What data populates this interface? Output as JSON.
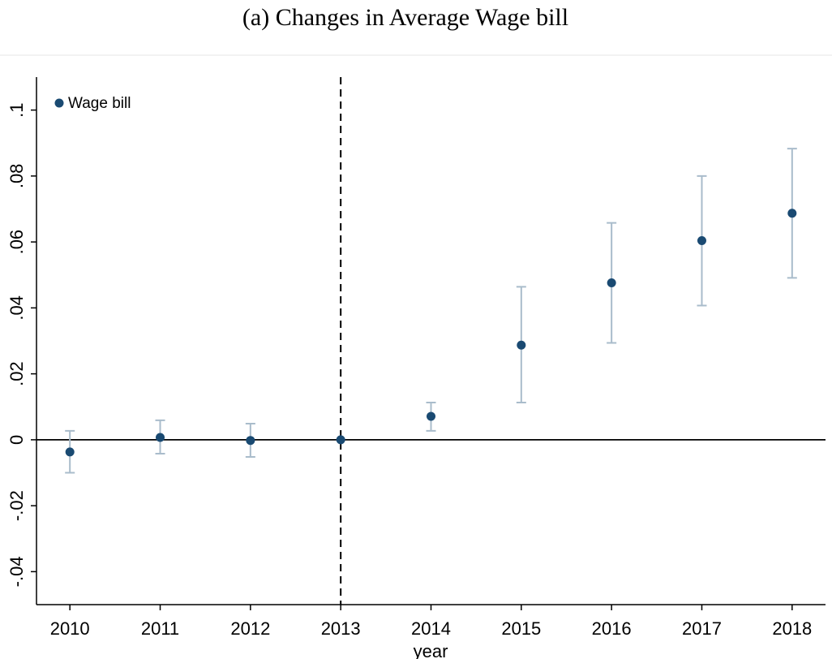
{
  "chart_data": {
    "type": "scatter",
    "title": "(a) Changes in Average Wage bill",
    "x_label": "year",
    "x": [
      2010,
      2011,
      2012,
      2013,
      2014,
      2015,
      2016,
      2017,
      2018
    ],
    "series": [
      {
        "name": "Wage bill",
        "color": "#1a4a72",
        "values": [
          -0.0037,
          0.0007,
          -0.0002,
          0,
          0.0071,
          0.0287,
          0.0476,
          0.0604,
          0.0687
        ],
        "lower": [
          -0.01,
          -0.0042,
          -0.0052,
          null,
          0.0027,
          0.0113,
          0.0294,
          0.0407,
          0.0491
        ],
        "upper": [
          0.0027,
          0.0059,
          0.0049,
          null,
          0.0113,
          0.0464,
          0.0658,
          0.08,
          0.0883
        ],
        "error_color": "#a9bccb"
      }
    ],
    "xlim": [
      2009.63,
      2018.37
    ],
    "ylim": [
      -0.05,
      0.11
    ],
    "xticks": [
      2010,
      2011,
      2012,
      2013,
      2014,
      2015,
      2016,
      2017,
      2018
    ],
    "yticks": [
      {
        "value": -0.04,
        "label": "-.04"
      },
      {
        "value": -0.02,
        "label": "-.02"
      },
      0,
      {
        "value": 0.02,
        "label": ".02"
      },
      {
        "value": 0.04,
        "label": ".04"
      },
      {
        "value": 0.06,
        "label": ".06"
      },
      {
        "value": 0.08,
        "label": ".08"
      },
      {
        "value": 0.1,
        "label": ".1"
      }
    ],
    "vline": 2013,
    "hline": 0,
    "legend": "top-left"
  }
}
